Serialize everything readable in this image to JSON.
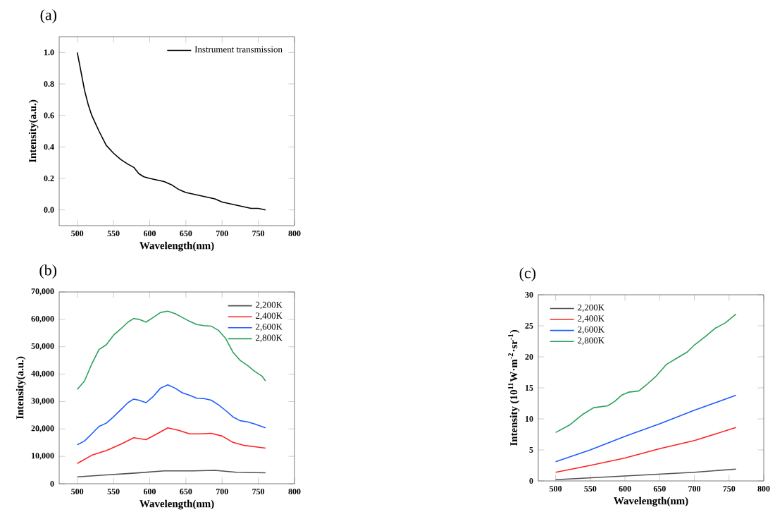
{
  "chart_data": [
    {
      "type": "line",
      "title": "(a)",
      "xlabel": "Wavelength(nm)",
      "ylabel": "Intensity(a.u.)",
      "xlim": [
        475,
        800
      ],
      "ylim": [
        -0.1,
        1.1
      ],
      "xticks": [
        500,
        550,
        600,
        650,
        700,
        750,
        800
      ],
      "yticks": [
        {
          "value": 0,
          "label": "0.0"
        },
        {
          "value": 0.2,
          "label": "0.2"
        },
        {
          "value": 0.4,
          "label": "0.4"
        },
        {
          "value": 0.6,
          "label": "0.6"
        },
        {
          "value": 0.8,
          "label": "0.8"
        },
        {
          "value": 1,
          "label": "1.0"
        }
      ],
      "legend": "top right",
      "marker": "none",
      "line_style": "solid",
      "x": [
        500,
        505,
        510,
        515,
        520,
        530,
        540,
        550,
        560,
        570,
        578,
        585,
        592,
        600,
        610,
        620,
        630,
        640,
        650,
        660,
        670,
        680,
        690,
        700,
        710,
        720,
        730,
        740,
        750,
        760
      ],
      "series": [
        {
          "name": "Instrument transmission",
          "color": "#000000",
          "values": [
            1.0,
            0.88,
            0.76,
            0.67,
            0.6,
            0.5,
            0.41,
            0.36,
            0.32,
            0.29,
            0.27,
            0.23,
            0.21,
            0.2,
            0.19,
            0.18,
            0.16,
            0.13,
            0.11,
            0.1,
            0.09,
            0.08,
            0.07,
            0.05,
            0.04,
            0.03,
            0.02,
            0.01,
            0.01,
            0.0
          ]
        }
      ]
    },
    {
      "type": "line",
      "title": "(b)",
      "xlabel": "Wavelength(nm)",
      "ylabel": "Intensity(a.u.)",
      "xlim": [
        475,
        800
      ],
      "ylim": [
        0,
        70000
      ],
      "xticks": [
        500,
        550,
        600,
        650,
        700,
        750,
        800
      ],
      "yticks": [
        {
          "value": 0,
          "label": "0"
        },
        {
          "value": 10000,
          "label": "10,000"
        },
        {
          "value": 20000,
          "label": "20,000"
        },
        {
          "value": 30000,
          "label": "30,000"
        },
        {
          "value": 40000,
          "label": "40,000"
        },
        {
          "value": 50000,
          "label": "50,000"
        },
        {
          "value": 60000,
          "label": "60,000"
        },
        {
          "value": 70000,
          "label": "70,000"
        }
      ],
      "legend": "top right",
      "marker": "none",
      "line_style": "solid",
      "series": [
        {
          "name": "2,200K",
          "color": "#505050",
          "x": [
            500,
            540,
            580,
            620,
            660,
            690,
            720,
            760
          ],
          "values": [
            2500,
            3200,
            3900,
            4700,
            4700,
            4900,
            4200,
            4000
          ]
        },
        {
          "name": "2,400K",
          "color": "#ff2020",
          "x": [
            500,
            520,
            540,
            560,
            578,
            595,
            610,
            625,
            640,
            655,
            670,
            685,
            700,
            715,
            730,
            745,
            760
          ],
          "values": [
            7400,
            10400,
            12100,
            14400,
            16800,
            16100,
            18200,
            20400,
            19500,
            18200,
            18200,
            18400,
            17400,
            15100,
            14000,
            13500,
            13000
          ]
        },
        {
          "name": "2,600K",
          "color": "#1f5cff",
          "x": [
            500,
            510,
            520,
            530,
            540,
            550,
            560,
            570,
            578,
            585,
            595,
            605,
            615,
            625,
            635,
            645,
            655,
            665,
            675,
            685,
            695,
            705,
            715,
            725,
            735,
            745,
            760
          ],
          "values": [
            14200,
            15600,
            18200,
            20900,
            22100,
            24400,
            27000,
            29600,
            30900,
            30500,
            29600,
            31900,
            34900,
            36100,
            34900,
            33200,
            32300,
            31200,
            31100,
            30500,
            28800,
            26700,
            24400,
            23000,
            22600,
            21800,
            20400
          ]
        },
        {
          "name": "2,800K",
          "color": "#2ca05a",
          "x": [
            500,
            510,
            520,
            530,
            540,
            550,
            560,
            570,
            578,
            585,
            595,
            605,
            615,
            625,
            635,
            645,
            655,
            665,
            675,
            685,
            695,
            705,
            715,
            725,
            735,
            745,
            755,
            760
          ],
          "values": [
            34400,
            37500,
            43700,
            49000,
            50700,
            54200,
            56500,
            59000,
            60300,
            60000,
            59000,
            60700,
            62500,
            63000,
            62100,
            60700,
            59300,
            58100,
            57700,
            57500,
            56000,
            53000,
            48000,
            45000,
            43200,
            41000,
            39300,
            37500
          ]
        }
      ]
    },
    {
      "type": "line",
      "title": "(c)",
      "xlabel": "Wavelength(nm)",
      "ylabel": "Intensity (10$^{11}$W·m$^{-2}$·sr$^{-1}$)",
      "xlim": [
        475,
        800
      ],
      "ylim": [
        0,
        30
      ],
      "xticks": [
        500,
        550,
        600,
        650,
        700,
        750,
        800
      ],
      "yticks": [
        0,
        5,
        10,
        15,
        20,
        25,
        30
      ],
      "legend": "top left",
      "marker": "none",
      "line_style": "solid",
      "series": [
        {
          "name": "2,200K",
          "color": "#505050",
          "x": [
            500,
            600,
            700,
            760
          ],
          "values": [
            0.2,
            0.8,
            1.4,
            1.9
          ]
        },
        {
          "name": "2,400K",
          "color": "#ff2020",
          "x": [
            500,
            550,
            600,
            650,
            700,
            760
          ],
          "values": [
            1.4,
            2.5,
            3.7,
            5.2,
            6.5,
            8.6
          ]
        },
        {
          "name": "2,600K",
          "color": "#1f5cff",
          "x": [
            500,
            550,
            600,
            650,
            700,
            760
          ],
          "values": [
            3.1,
            5.0,
            7.2,
            9.2,
            11.4,
            13.8
          ]
        },
        {
          "name": "2,800K",
          "color": "#2ca05a",
          "x": [
            500,
            520,
            540,
            555,
            575,
            585,
            595,
            605,
            620,
            630,
            645,
            660,
            675,
            690,
            700,
            715,
            730,
            745,
            760
          ],
          "values": [
            7.8,
            9.0,
            10.8,
            11.8,
            12.1,
            12.8,
            13.8,
            14.3,
            14.5,
            15.4,
            16.9,
            18.8,
            19.8,
            20.8,
            21.9,
            23.2,
            24.6,
            25.5,
            26.9
          ]
        }
      ]
    }
  ]
}
